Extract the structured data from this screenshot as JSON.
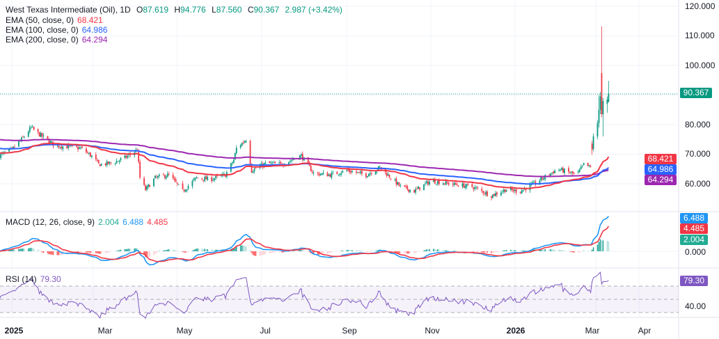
{
  "header": {
    "symbol": "West Texas Intermediate (Oil), 1D",
    "o_label": "O",
    "open": "87.619",
    "h_label": "H",
    "high": "94.776",
    "l_label": "L",
    "low": "87.560",
    "c_label": "C",
    "close": "90.367",
    "change": "2.987 (+3.42%)"
  },
  "indicators": {
    "ema50": {
      "label": "EMA (50, close, 0)",
      "value": "68.421",
      "color": "#f23645"
    },
    "ema100": {
      "label": "EMA (100, close, 0)",
      "value": "64.986",
      "color": "#2962ff"
    },
    "ema200": {
      "label": "EMA (200, close, 0)",
      "value": "64.294",
      "color": "#9c27b0"
    },
    "macd": {
      "label": "MACD (12, 26, close, 9)",
      "histogram": "2.004",
      "macd": "6.488",
      "signal": "4.485",
      "macd_color": "#2196f3",
      "signal_color": "#f23645",
      "hist_color": "#22ab94"
    },
    "rsi": {
      "label": "RSI (14)",
      "value": "79.30",
      "color": "#7e57c2"
    }
  },
  "price_axis": {
    "ticks": [
      "120.000",
      "110.000",
      "100.000",
      "80.000",
      "70.000",
      "60.000"
    ],
    "last_price": "90.367"
  },
  "macd_axis": {
    "ticks": [
      "0.000"
    ]
  },
  "rsi_axis": {
    "ticks": [
      "40.00"
    ]
  },
  "time_axis": {
    "labels": [
      "2025",
      "Mar",
      "May",
      "Jul",
      "Sep",
      "Nov",
      "2026",
      "Mar",
      "Apr"
    ]
  },
  "colors": {
    "up": "#089981",
    "down": "#f23645",
    "last_price": "#089981"
  },
  "chart_data": {
    "type": "candlestick",
    "title": "West Texas Intermediate (Oil), 1D",
    "ylim": [
      55,
      121
    ],
    "grid": true,
    "close_path": [
      [
        "2024-12-23",
        69.5
      ],
      [
        "2025-01-01",
        71.5
      ],
      [
        "2025-01-10",
        76
      ],
      [
        "2025-01-15",
        79
      ],
      [
        "2025-01-20",
        77
      ],
      [
        "2025-02-01",
        73
      ],
      [
        "2025-02-10",
        72.5
      ],
      [
        "2025-02-20",
        72
      ],
      [
        "2025-03-01",
        69
      ],
      [
        "2025-03-05",
        66.5
      ],
      [
        "2025-03-15",
        67
      ],
      [
        "2025-03-25",
        69
      ],
      [
        "2025-04-02",
        71.5
      ],
      [
        "2025-04-04",
        62
      ],
      [
        "2025-04-08",
        58
      ],
      [
        "2025-04-15",
        62
      ],
      [
        "2025-04-25",
        63
      ],
      [
        "2025-05-05",
        57.5
      ],
      [
        "2025-05-15",
        62
      ],
      [
        "2025-05-25",
        61.5
      ],
      [
        "2025-06-05",
        63
      ],
      [
        "2025-06-11",
        68
      ],
      [
        "2025-06-13",
        72
      ],
      [
        "2025-06-20",
        75
      ],
      [
        "2025-06-24",
        64.5
      ],
      [
        "2025-07-05",
        67
      ],
      [
        "2025-07-15",
        66.5
      ],
      [
        "2025-07-30",
        69.5
      ],
      [
        "2025-08-08",
        63.5
      ],
      [
        "2025-08-20",
        63
      ],
      [
        "2025-09-01",
        64.5
      ],
      [
        "2025-09-15",
        63
      ],
      [
        "2025-09-25",
        65.5
      ],
      [
        "2025-10-10",
        59
      ],
      [
        "2025-10-20",
        57.5
      ],
      [
        "2025-11-01",
        61
      ],
      [
        "2025-11-15",
        60
      ],
      [
        "2025-12-01",
        59
      ],
      [
        "2025-12-15",
        56
      ],
      [
        "2025-12-25",
        58
      ],
      [
        "2026-01-05",
        57.5
      ],
      [
        "2026-01-15",
        60
      ],
      [
        "2026-02-01",
        65
      ],
      [
        "2026-02-15",
        63
      ],
      [
        "2026-02-20",
        66.5
      ],
      [
        "2026-02-25",
        65.5
      ]
    ],
    "recent_candles": [
      {
        "date": "2026-02-26",
        "o": 73.5,
        "h": 74.5,
        "l": 69.8,
        "c": 71.5
      },
      {
        "date": "2026-02-27",
        "o": 71.8,
        "h": 77,
        "l": 71,
        "c": 76
      },
      {
        "date": "2026-03-02",
        "o": 76,
        "h": 81.5,
        "l": 75,
        "c": 80.5
      },
      {
        "date": "2026-03-03",
        "o": 80.5,
        "h": 90,
        "l": 79,
        "c": 85
      },
      {
        "date": "2026-03-04",
        "o": 85,
        "h": 91,
        "l": 83.5,
        "c": 89.5
      },
      {
        "date": "2026-03-05",
        "o": 97.4,
        "h": 113.2,
        "l": 82.5,
        "c": 83.5
      },
      {
        "date": "2026-03-06",
        "o": 83.5,
        "h": 89,
        "l": 76,
        "c": 88
      },
      {
        "date": "2026-03-09",
        "o": 87,
        "h": 89.5,
        "l": 84,
        "c": 88.5
      },
      {
        "date": "2026-03-10",
        "o": 87.619,
        "h": 94.776,
        "l": 87.56,
        "c": 90.367
      }
    ]
  }
}
